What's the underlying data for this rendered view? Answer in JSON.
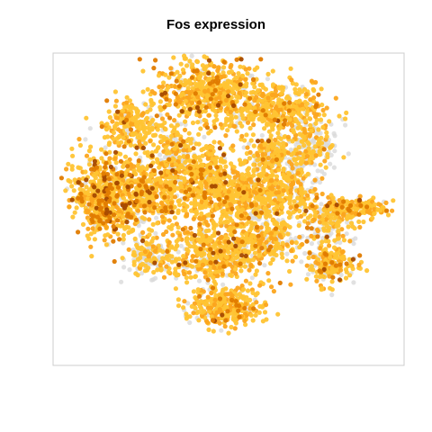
{
  "chart_data": {
    "type": "scatter",
    "title": "Fos expression",
    "xlabel": "",
    "ylabel": "",
    "axes_visible": false,
    "grid": false,
    "legend": "none",
    "xlim": [
      -48,
      48
    ],
    "ylim": [
      -48,
      48
    ],
    "colors": {
      "zero": "#d9d9d9",
      "low": "#ffc433",
      "mid": "#fca51e",
      "high": "#e07b00",
      "max": "#a64a00",
      "frame": "#cccccc"
    },
    "clusters": [
      {
        "cx": -6,
        "cy": 36,
        "rx": 13,
        "ry": 9,
        "n": 520,
        "zero_frac": 0.05,
        "high_frac": 0.1
      },
      {
        "cx": 11,
        "cy": 31,
        "rx": 14,
        "ry": 8,
        "n": 420,
        "zero_frac": 0.08,
        "high_frac": 0.03
      },
      {
        "cx": -26,
        "cy": 26,
        "rx": 9,
        "ry": 7,
        "n": 220,
        "zero_frac": 0.12,
        "high_frac": 0.05
      },
      {
        "cx": 23,
        "cy": 20,
        "rx": 6,
        "ry": 8,
        "n": 180,
        "zero_frac": 0.45,
        "high_frac": 0.02
      },
      {
        "cx": -34,
        "cy": 4,
        "rx": 8,
        "ry": 12,
        "n": 520,
        "zero_frac": 0.05,
        "high_frac": 0.22
      },
      {
        "cx": -22,
        "cy": 5,
        "rx": 9,
        "ry": 10,
        "n": 380,
        "zero_frac": 0.08,
        "high_frac": 0.1
      },
      {
        "cx": -8,
        "cy": 8,
        "rx": 11,
        "ry": 11,
        "n": 520,
        "zero_frac": 0.1,
        "high_frac": 0.06
      },
      {
        "cx": 7,
        "cy": 4,
        "rx": 10,
        "ry": 11,
        "n": 480,
        "zero_frac": 0.15,
        "high_frac": 0.04
      },
      {
        "cx": 18,
        "cy": 6,
        "rx": 6,
        "ry": 10,
        "n": 200,
        "zero_frac": 0.35,
        "high_frac": 0.02
      },
      {
        "cx": -15,
        "cy": 18,
        "rx": 4,
        "ry": 6,
        "n": 120,
        "zero_frac": 0.5,
        "high_frac": 0.02
      },
      {
        "cx": -4,
        "cy": -14,
        "rx": 14,
        "ry": 8,
        "n": 480,
        "zero_frac": 0.12,
        "high_frac": 0.04
      },
      {
        "cx": -22,
        "cy": -15,
        "rx": 6,
        "ry": 5,
        "n": 140,
        "zero_frac": 0.45,
        "high_frac": 0.02
      },
      {
        "cx": -1,
        "cy": -30,
        "rx": 9,
        "ry": 5,
        "n": 300,
        "zero_frac": 0.18,
        "high_frac": 0.04
      },
      {
        "cx": 33,
        "cy": 0,
        "rx": 9,
        "ry": 3,
        "n": 220,
        "zero_frac": 0.08,
        "high_frac": 0.06
      },
      {
        "cx": 28,
        "cy": -5,
        "rx": 6,
        "ry": 5,
        "n": 120,
        "zero_frac": 0.4,
        "high_frac": 0.02
      },
      {
        "cx": 28,
        "cy": -17,
        "rx": 6,
        "ry": 5,
        "n": 200,
        "zero_frac": 0.3,
        "high_frac": 0.06
      },
      {
        "cx": 10,
        "cy": -10,
        "rx": 10,
        "ry": 5,
        "n": 200,
        "zero_frac": 0.35,
        "high_frac": 0.03
      },
      {
        "cx": 13,
        "cy": 17,
        "rx": 6,
        "ry": 5,
        "n": 140,
        "zero_frac": 0.3,
        "high_frac": 0.02
      }
    ]
  }
}
